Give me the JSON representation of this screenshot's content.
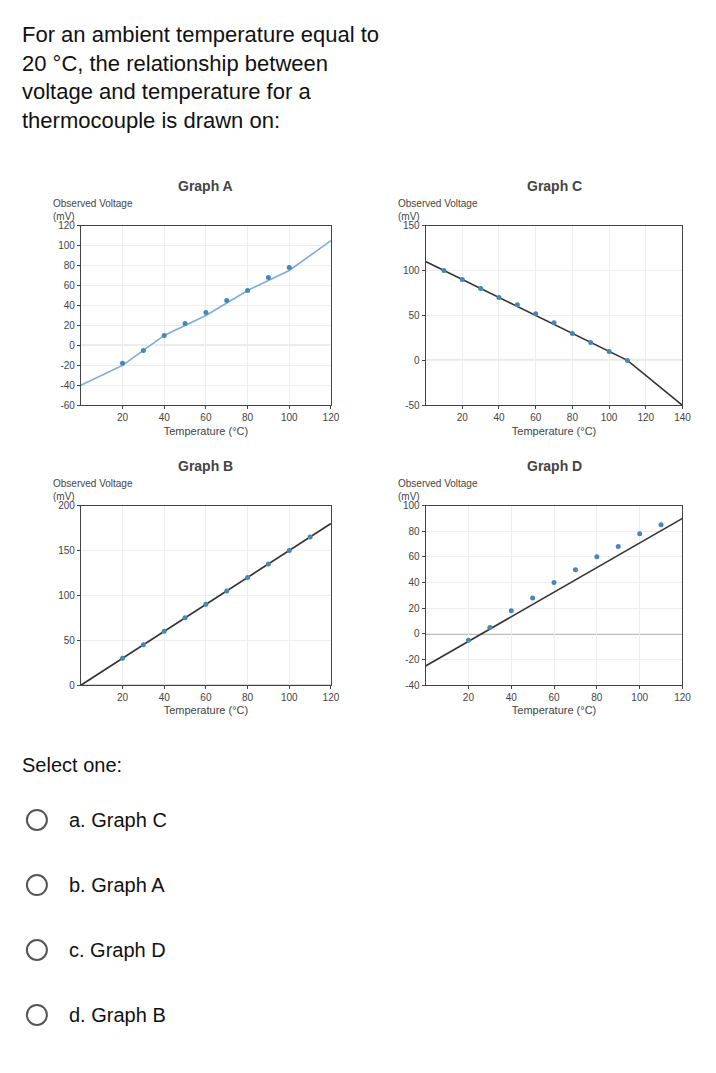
{
  "title": "For an ambient temperature equal to\n20 °C, the relationship between\nvoltage and temperature for a\nthermocouple is drawn on:",
  "annotations": [
    {
      "text": "Select one:"
    },
    {
      "text": "a. Graph C",
      "marker": "radio"
    },
    {
      "text": "b. Graph A",
      "marker": "radio"
    },
    {
      "text": "c. Graph D",
      "marker": "radio"
    },
    {
      "text": "d. Graph B",
      "marker": "radio"
    }
  ],
  "chart_data": [
    {
      "type": "line",
      "title": "Graph A",
      "xlabel": "Temperature (°C)",
      "ylabel": "Observed Voltage\n(mV)",
      "xlim": [
        0,
        120
      ],
      "ylim": [
        -60,
        120
      ],
      "xticks": [
        20,
        40,
        60,
        80,
        100,
        120
      ],
      "yticks": [
        -60,
        -40,
        -20,
        0,
        20,
        40,
        60,
        80,
        100,
        120
      ],
      "grid": true,
      "series": [
        {
          "type": "line",
          "color": "#7aadda",
          "x": [
            0,
            20,
            40,
            60,
            80,
            100,
            120
          ],
          "values": [
            -40,
            -20,
            10,
            30,
            55,
            75,
            105
          ]
        },
        {
          "type": "scatter",
          "color": "#4488bb",
          "x": [
            20,
            30,
            40,
            50,
            60,
            70,
            80,
            90,
            100
          ],
          "values": [
            -18,
            -5,
            10,
            22,
            33,
            45,
            55,
            68,
            78
          ]
        },
        {
          "type": "hline",
          "color": "#555555",
          "values": [
            0
          ]
        }
      ]
    },
    {
      "type": "line",
      "title": "Graph C",
      "xlabel": "Temperature (°C)",
      "ylabel": "Observed Voltage\n(mV)",
      "xlim": [
        0,
        140
      ],
      "ylim": [
        -50,
        150
      ],
      "xticks": [
        20,
        40,
        60,
        80,
        100,
        120,
        140
      ],
      "yticks": [
        -50,
        0,
        50,
        100,
        150
      ],
      "grid": true,
      "series": [
        {
          "type": "line",
          "color": "#333333",
          "x": [
            0,
            110,
            140
          ],
          "values": [
            110,
            0,
            -50
          ]
        },
        {
          "type": "scatter",
          "color": "#4488bb",
          "x": [
            10,
            20,
            30,
            40,
            50,
            60,
            70,
            80,
            90,
            100,
            110
          ],
          "values": [
            100,
            90,
            80,
            70,
            62,
            52,
            42,
            30,
            20,
            10,
            0
          ]
        },
        {
          "type": "hline",
          "color": "#555555",
          "values": [
            0
          ]
        }
      ]
    },
    {
      "type": "line",
      "title": "Graph B",
      "xlabel": "Temperature (°C)",
      "ylabel": "Observed Voltage\n(mV)",
      "xlim": [
        0,
        120
      ],
      "ylim": [
        0,
        200
      ],
      "xticks": [
        20,
        40,
        60,
        80,
        100,
        120
      ],
      "yticks": [
        0,
        50,
        100,
        150,
        200
      ],
      "grid": true,
      "series": [
        {
          "type": "line",
          "color": "#333333",
          "x": [
            0,
            120
          ],
          "values": [
            0,
            180
          ]
        },
        {
          "type": "scatter",
          "color": "#4488bb",
          "x": [
            20,
            30,
            40,
            50,
            60,
            70,
            80,
            90,
            100,
            110
          ],
          "values": [
            30,
            45,
            60,
            75,
            90,
            105,
            120,
            135,
            150,
            165
          ]
        },
        {
          "type": "hline",
          "color": "#555555",
          "values": [
            0
          ]
        }
      ]
    },
    {
      "type": "line",
      "title": "Graph D",
      "xlabel": "Temperature (°C)",
      "ylabel": "Observed Voltage\n(mV)",
      "xlim": [
        0,
        120
      ],
      "ylim": [
        -40,
        100
      ],
      "xticks": [
        20,
        40,
        60,
        80,
        100,
        120
      ],
      "yticks": [
        -40,
        -20,
        0,
        20,
        40,
        60,
        80,
        100
      ],
      "grid": true,
      "series": [
        {
          "type": "line",
          "color": "#333333",
          "x": [
            0,
            120
          ],
          "values": [
            -25,
            90
          ]
        },
        {
          "type": "scatter",
          "color": "#4488bb",
          "x": [
            20,
            30,
            40,
            50,
            60,
            70,
            80,
            90,
            100,
            110
          ],
          "values": [
            -5,
            5,
            18,
            28,
            40,
            50,
            60,
            68,
            78,
            85
          ]
        },
        {
          "type": "hline",
          "color": "#555555",
          "values": [
            0
          ]
        }
      ]
    }
  ]
}
